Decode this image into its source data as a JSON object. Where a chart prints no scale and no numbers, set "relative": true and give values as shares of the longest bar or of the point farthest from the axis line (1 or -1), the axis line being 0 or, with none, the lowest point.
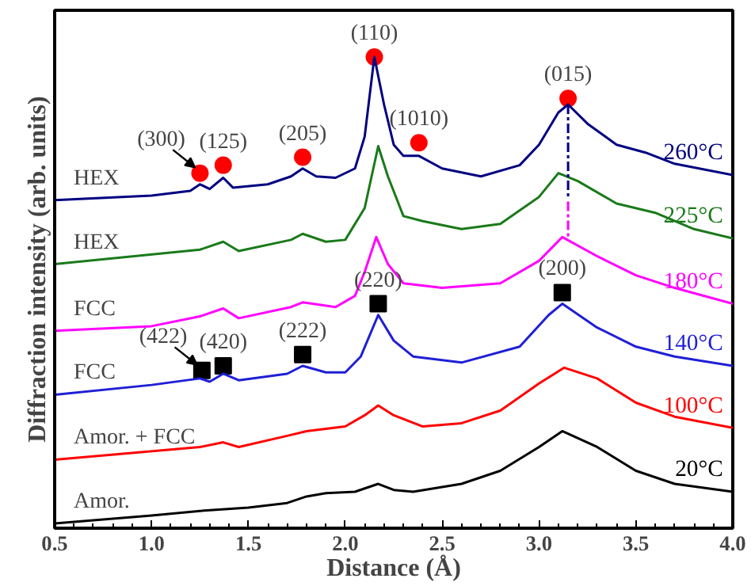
{
  "chart_data": {
    "type": "line",
    "relative": true,
    "xlabel": "Distance (Å)",
    "ylabel": "Diffraction intensity (arb. units)",
    "xlim": [
      0.5,
      4.0
    ],
    "xticks": [
      0.5,
      {
        "value": 1,
        "label": "1.0"
      },
      1.5,
      {
        "value": 2,
        "label": "2.0"
      },
      2.5,
      {
        "value": 3,
        "label": "3.0"
      },
      3.5,
      {
        "value": 4,
        "label": "4.0"
      }
    ],
    "grid": false,
    "legend": false,
    "series": [
      {
        "name": "260°C",
        "color": "#000080",
        "x": [
          0.5,
          1.0,
          1.2,
          1.25,
          1.3,
          1.37,
          1.42,
          1.6,
          1.72,
          1.78,
          1.85,
          1.95,
          2.05,
          2.1,
          2.15,
          2.2,
          2.25,
          2.3,
          2.38,
          2.5,
          2.7,
          2.9,
          3.0,
          3.1,
          3.15,
          3.25,
          3.4,
          3.55,
          3.7,
          4.0
        ],
        "values": [
          0.693,
          0.703,
          0.713,
          0.727,
          0.717,
          0.741,
          0.72,
          0.727,
          0.744,
          0.761,
          0.744,
          0.741,
          0.761,
          0.829,
          1.0,
          0.898,
          0.812,
          0.788,
          0.788,
          0.761,
          0.744,
          0.768,
          0.812,
          0.881,
          0.898,
          0.857,
          0.812,
          0.795,
          0.771,
          0.747
        ]
      },
      {
        "name": "225°C",
        "color": "#1a7a1a",
        "x": [
          0.5,
          1.25,
          1.37,
          1.45,
          1.72,
          1.78,
          1.9,
          2.0,
          2.1,
          2.17,
          2.22,
          2.3,
          2.4,
          2.6,
          2.8,
          3.0,
          3.1,
          3.2,
          3.4,
          3.6,
          3.8,
          4.0
        ],
        "values": [
          0.556,
          0.587,
          0.604,
          0.584,
          0.608,
          0.621,
          0.604,
          0.608,
          0.676,
          0.809,
          0.744,
          0.659,
          0.648,
          0.631,
          0.642,
          0.7,
          0.751,
          0.734,
          0.686,
          0.666,
          0.631,
          0.611
        ]
      },
      {
        "name": "180°C",
        "color": "#ff00ff",
        "x": [
          0.5,
          1.0,
          1.25,
          1.37,
          1.45,
          1.72,
          1.78,
          1.95,
          2.05,
          2.1,
          2.16,
          2.22,
          2.3,
          2.5,
          2.8,
          3.0,
          3.12,
          3.3,
          3.5,
          3.7,
          4.0
        ],
        "values": [
          0.413,
          0.423,
          0.444,
          0.461,
          0.44,
          0.464,
          0.474,
          0.464,
          0.488,
          0.539,
          0.614,
          0.556,
          0.515,
          0.505,
          0.515,
          0.563,
          0.614,
          0.573,
          0.532,
          0.505,
          0.471
        ]
      },
      {
        "name": "140°C",
        "color": "#1f1fd6",
        "x": [
          0.5,
          1.0,
          1.25,
          1.3,
          1.37,
          1.45,
          1.7,
          1.78,
          1.9,
          2.0,
          2.08,
          2.17,
          2.25,
          2.35,
          2.6,
          2.9,
          3.05,
          3.12,
          3.3,
          3.5,
          3.7,
          4.0
        ],
        "values": [
          0.276,
          0.297,
          0.311,
          0.304,
          0.321,
          0.307,
          0.321,
          0.338,
          0.324,
          0.324,
          0.358,
          0.447,
          0.392,
          0.358,
          0.345,
          0.379,
          0.447,
          0.471,
          0.42,
          0.379,
          0.358,
          0.338
        ]
      },
      {
        "name": "100°C",
        "color": "#ff0000",
        "x": [
          0.5,
          1.25,
          1.37,
          1.45,
          1.7,
          1.8,
          2.0,
          2.1,
          2.17,
          2.25,
          2.4,
          2.6,
          2.8,
          3.0,
          3.13,
          3.3,
          3.5,
          3.7,
          4.0
        ],
        "values": [
          0.137,
          0.164,
          0.174,
          0.164,
          0.188,
          0.198,
          0.208,
          0.232,
          0.253,
          0.232,
          0.208,
          0.215,
          0.242,
          0.3,
          0.334,
          0.311,
          0.259,
          0.229,
          0.205
        ]
      },
      {
        "name": "20°C",
        "color": "#000000",
        "x": [
          0.5,
          1.0,
          1.25,
          1.5,
          1.7,
          1.8,
          1.9,
          2.05,
          2.17,
          2.25,
          2.35,
          2.6,
          2.8,
          3.0,
          3.12,
          3.3,
          3.5,
          3.7,
          4.0
        ],
        "values": [
          0.0,
          0.017,
          0.027,
          0.034,
          0.044,
          0.058,
          0.065,
          0.068,
          0.085,
          0.072,
          0.068,
          0.085,
          0.113,
          0.164,
          0.198,
          0.164,
          0.113,
          0.085,
          0.068
        ]
      },
      {
        "type": "line",
        "line_style": "dashed",
        "color": "#000080",
        "x": [
          3.15,
          3.15
        ],
        "values": [
          0.898,
          0.7
        ]
      },
      {
        "type": "line",
        "line_style": "dashed",
        "color": "#ff00ff",
        "x": [
          3.15,
          3.15
        ],
        "values": [
          0.69,
          0.614
        ]
      },
      {
        "type": "scatter",
        "marker": "circle",
        "color": "#ff0000",
        "x": [
          1.25,
          1.37,
          1.78,
          2.15,
          2.38,
          3.15
        ],
        "values": [
          0.751,
          0.768,
          0.785,
          1.0,
          0.816,
          0.911
        ]
      },
      {
        "type": "scatter",
        "marker": "square",
        "color": "#000000",
        "x": [
          1.26,
          1.37,
          1.78,
          2.17,
          3.12
        ],
        "values": [
          0.328,
          0.338,
          0.362,
          0.471,
          0.495
        ]
      }
    ],
    "annotations": [
      {
        "text": "(300)",
        "x": 1.25,
        "y": 0.751
      },
      {
        "text": "(125)",
        "x": 1.37,
        "y": 0.768
      },
      {
        "text": "(205)",
        "x": 1.78,
        "y": 0.785
      },
      {
        "text": "(110)",
        "x": 2.15,
        "y": 1.0
      },
      {
        "text": "(1010)",
        "x": 2.38,
        "y": 0.816
      },
      {
        "text": "(015)",
        "x": 3.15,
        "y": 0.911
      },
      {
        "text": "(422)",
        "x": 1.26,
        "y": 0.328
      },
      {
        "text": "(420)",
        "x": 1.37,
        "y": 0.338
      },
      {
        "text": "(222)",
        "x": 1.78,
        "y": 0.362
      },
      {
        "text": "(220)",
        "x": 2.17,
        "y": 0.471
      },
      {
        "text": "(200)",
        "x": 3.12,
        "y": 0.495
      },
      {
        "text": "HEX",
        "x": 0.5,
        "y": 0.693
      },
      {
        "text": "HEX",
        "x": 0.5,
        "y": 0.556
      },
      {
        "text": "FCC",
        "x": 0.5,
        "y": 0.413
      },
      {
        "text": "FCC",
        "x": 0.5,
        "y": 0.276
      },
      {
        "text": "Amor. + FCC",
        "x": 0.5,
        "y": 0.137
      },
      {
        "text": "Amor.",
        "x": 0.5,
        "y": 0.0
      }
    ]
  }
}
